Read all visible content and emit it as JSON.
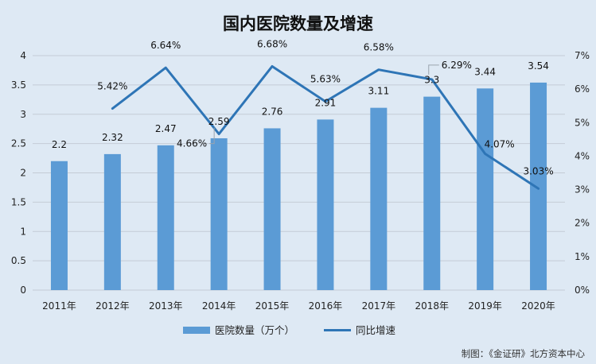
{
  "chart_data": {
    "type": "bar+line",
    "title": "国内医院数量及增速",
    "categories": [
      "2011年",
      "2012年",
      "2013年",
      "2014年",
      "2015年",
      "2016年",
      "2017年",
      "2018年",
      "2019年",
      "2020年"
    ],
    "series": [
      {
        "name": "医院数量（万个）",
        "type": "bar",
        "axis": "left",
        "values": [
          2.2,
          2.32,
          2.47,
          2.59,
          2.76,
          2.91,
          3.11,
          3.3,
          3.44,
          3.54
        ],
        "labels": [
          "2.2",
          "2.32",
          "2.47",
          "2.59",
          "2.76",
          "2.91",
          "3.11",
          "3.3",
          "3.44",
          "3.54"
        ],
        "color": "#5b9bd5"
      },
      {
        "name": "同比增速",
        "type": "line",
        "axis": "right",
        "values": [
          null,
          5.42,
          6.64,
          4.66,
          6.68,
          5.63,
          6.58,
          6.29,
          4.07,
          3.03
        ],
        "labels": [
          "",
          "5.42%",
          "6.64%",
          "4.66%",
          "6.68%",
          "5.63%",
          "6.58%",
          "6.29%",
          "4.07%",
          "3.03%"
        ],
        "color": "#2e75b6"
      }
    ],
    "y_left": {
      "ticks": [
        "0",
        "0.5",
        "1",
        "1.5",
        "2",
        "2.5",
        "3",
        "3.5",
        "4"
      ],
      "range": [
        0,
        4
      ]
    },
    "y_right": {
      "ticks": [
        "0%",
        "1%",
        "2%",
        "3%",
        "4%",
        "5%",
        "6%",
        "7%"
      ],
      "range": [
        0,
        7
      ]
    },
    "grid": true,
    "legend_position": "bottom"
  },
  "footer": {
    "credit": "制图：《金证研》北方资本中心"
  }
}
